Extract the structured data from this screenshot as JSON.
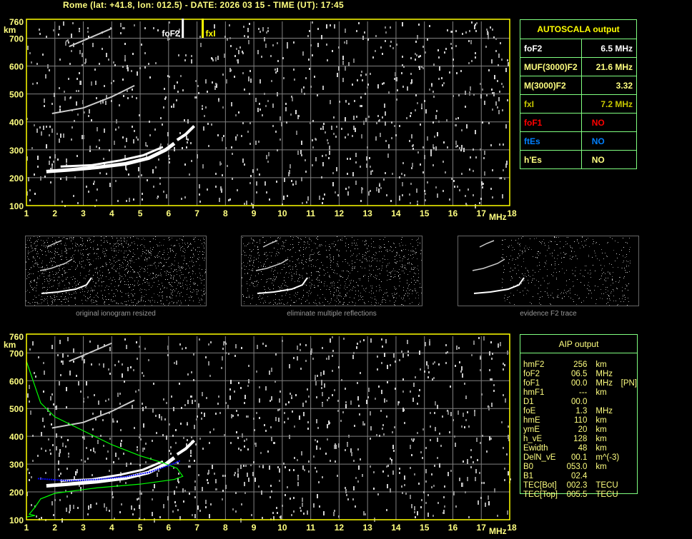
{
  "header": {
    "title": "Rome (lat: +41.8, lon: 012.5) - DATE: 2026 03 15 - TIME (UT): 17:45"
  },
  "axes": {
    "y_ticks": [
      "760",
      "700",
      "600",
      "500",
      "400",
      "300",
      "200",
      "100"
    ],
    "y_unit": "km",
    "x_ticks": [
      "1",
      "2",
      "3",
      "4",
      "5",
      "6",
      "7",
      "8",
      "9",
      "10",
      "11",
      "12",
      "13",
      "14",
      "15",
      "16",
      "17",
      "18"
    ],
    "x_unit": "MHz"
  },
  "markers": {
    "foF2_label": "foF2",
    "foF2_value": 6.5,
    "fxI_label": "fxI",
    "fxI_value": 7.2
  },
  "autoscala": {
    "title": "AUTOSCALA output",
    "rows": [
      {
        "label": "foF2",
        "value": "6.5 MHz",
        "color": "#ffffff"
      },
      {
        "label": "MUF(3000)F2",
        "value": "21.6 MHz",
        "color": "#ffff80"
      },
      {
        "label": "M(3000)F2",
        "value": "3.32",
        "color": "#ffff80"
      },
      {
        "label": "fxI",
        "value": "7.2 MHz",
        "color": "#c8c800"
      },
      {
        "label": "foF1",
        "value": "NO",
        "color": "#ff0000"
      },
      {
        "label": "ftEs",
        "value": "NO",
        "color": "#0080ff"
      },
      {
        "label": "h'Es",
        "value": "NO",
        "color": "#ffff80"
      }
    ]
  },
  "thumbnails": [
    {
      "label": "original ionogram resized"
    },
    {
      "label": "eliminate multiple reflections"
    },
    {
      "label": "evidence F2 trace"
    }
  ],
  "aip": {
    "title": "AIP output",
    "rows": [
      [
        "hmF2",
        "256",
        "km",
        ""
      ],
      [
        "foF2",
        "06.5",
        "MHz",
        ""
      ],
      [
        "foF1",
        "00.0",
        "MHz",
        "[PN]"
      ],
      [
        "hmF1",
        "---",
        "km",
        ""
      ],
      [
        "D1",
        "00.0",
        "",
        ""
      ],
      [
        "foE",
        "1.3",
        "MHz",
        ""
      ],
      [
        "hmE",
        "110",
        "km",
        ""
      ],
      [
        "ymE",
        "20",
        "km",
        ""
      ],
      [
        "h_vE",
        "128",
        "km",
        ""
      ],
      [
        "Ewidth",
        "48",
        "km",
        ""
      ],
      [
        "DelN_vE",
        "00.1",
        "m^(-3)",
        ""
      ],
      [
        "B0",
        "053.0",
        "km",
        ""
      ],
      [
        "B1",
        "02.4",
        "",
        ""
      ],
      [
        "TEC[Bot]",
        "002.3",
        "TECU",
        ""
      ],
      [
        "TEC[Top]",
        "005.5",
        "TECU",
        ""
      ]
    ]
  },
  "colors": {
    "axis": "#ffff00",
    "grid": "#808080",
    "table_border": "#80ff80",
    "profile": "#00ff00",
    "trace_fit": "#0000ff"
  }
}
